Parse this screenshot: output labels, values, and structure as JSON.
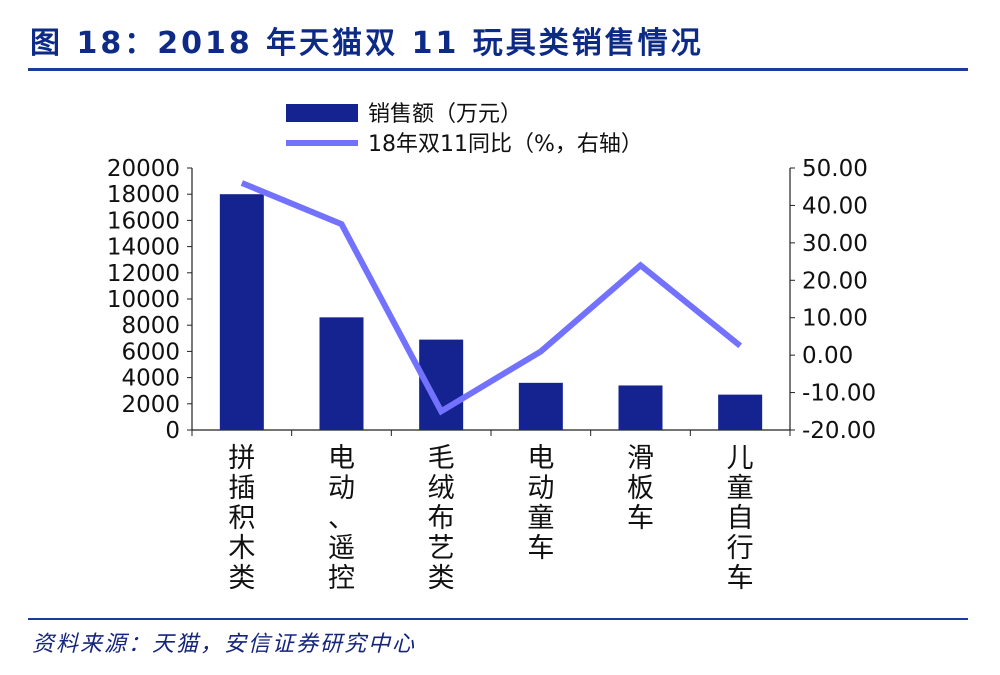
{
  "figure_title": "图 18：2018 年天猫双 11 玩具类销售情况",
  "source": "资料来源：天猫，安信证券研究中心",
  "chart_data": {
    "type": "bar+line",
    "categories": [
      "拼插积木类",
      "电动、遥控",
      "毛绒布艺类",
      "电动童车",
      "滑板车",
      "儿童自行车"
    ],
    "series": [
      {
        "name": "销售额（万元）",
        "type": "bar",
        "axis": "left",
        "color": "#14238f",
        "values": [
          18000,
          8600,
          6900,
          3600,
          3400,
          2700
        ]
      },
      {
        "name": "18年双11同比（%，右轴）",
        "type": "line",
        "axis": "right",
        "color": "#7272ff",
        "values": [
          46,
          35,
          -15,
          1,
          24,
          2.5
        ]
      }
    ],
    "y_left": {
      "range": [
        0,
        20000
      ],
      "ticks": [
        "0",
        "2000",
        "4000",
        "6000",
        "8000",
        "10000",
        "12000",
        "14000",
        "16000",
        "18000",
        "20000"
      ]
    },
    "y_right": {
      "range": [
        -20,
        50
      ],
      "ticks": [
        "-20.00",
        "-10.00",
        "0.00",
        "10.00",
        "20.00",
        "30.00",
        "40.00",
        "50.00"
      ]
    },
    "legend_position": "top"
  }
}
